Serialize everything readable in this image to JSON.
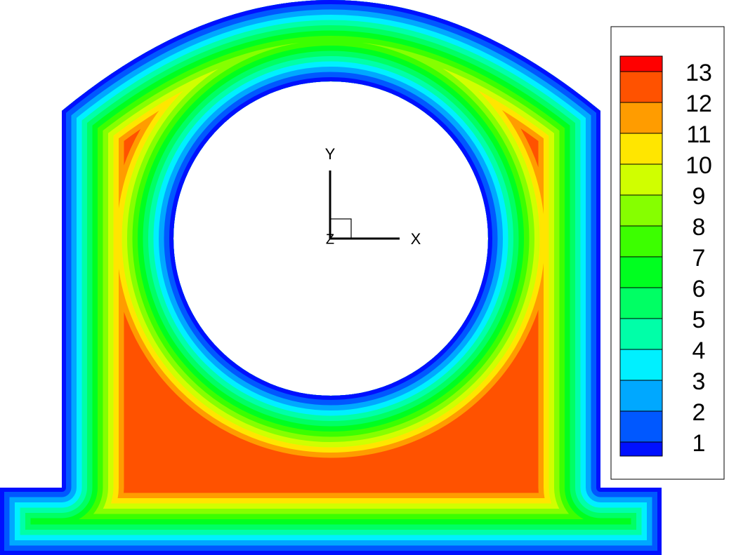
{
  "legend": {
    "labels": [
      13,
      12,
      11,
      10,
      9,
      8,
      7,
      6,
      5,
      4,
      3,
      2,
      1
    ],
    "colors": [
      "#ff0000",
      "#ff5200",
      "#ff9c00",
      "#ffe600",
      "#d0ff00",
      "#86ff00",
      "#3cff00",
      "#00ff20",
      "#00ff64",
      "#00ffa8",
      "#00f0ff",
      "#00a8ff",
      "#0058ff",
      "#0010ff"
    ]
  },
  "axes": {
    "x": "X",
    "y": "Y",
    "z": "Z"
  }
}
